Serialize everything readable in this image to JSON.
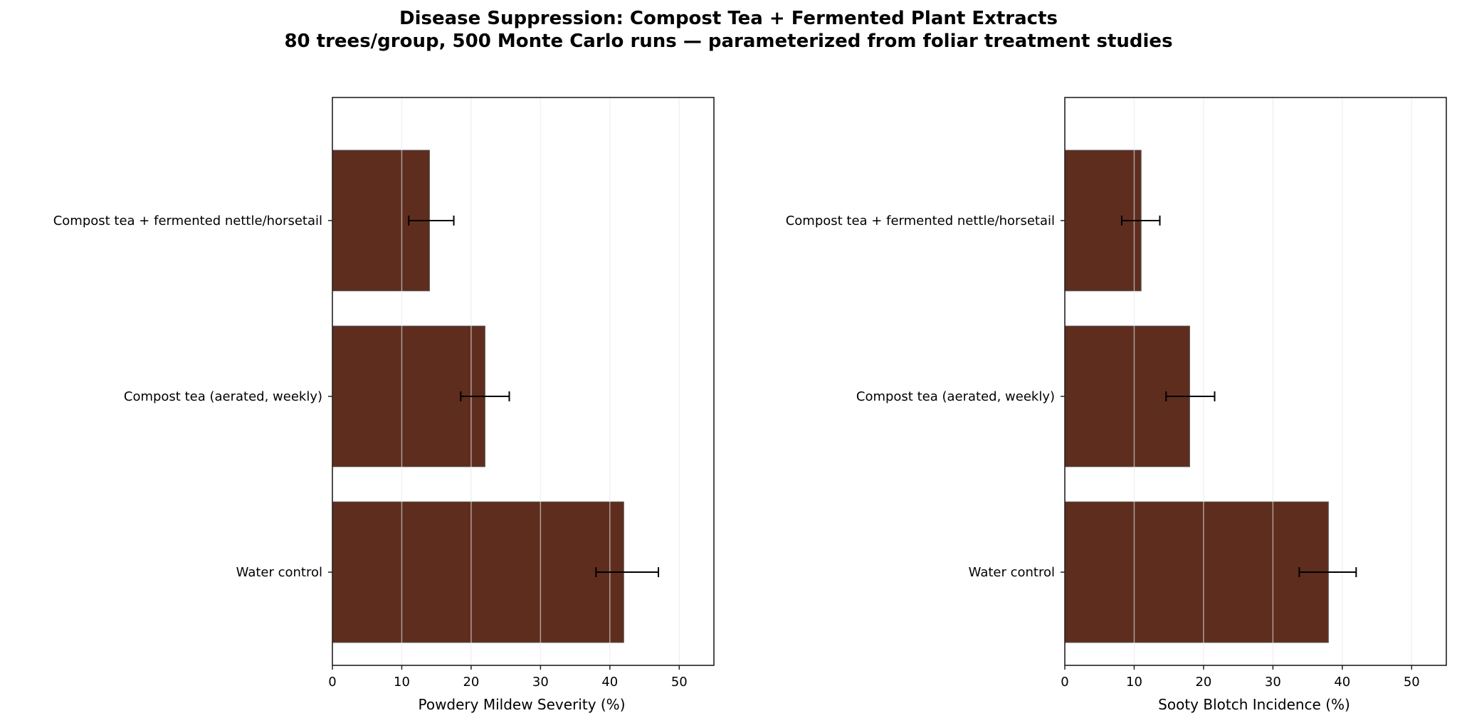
{
  "title": "Disease Suppression: Compost Tea + Fermented Plant Extracts",
  "subtitle": "80 trees/group, 500 Monte Carlo runs — parameterized from foliar treatment studies",
  "colors": {
    "bar": "#5e2d1e",
    "bar_edge": "#555555",
    "grid": "#e8e8e8",
    "axis": "#222222",
    "error": "#000000"
  },
  "chart_data": [
    {
      "type": "bar",
      "orientation": "horizontal",
      "title": "",
      "xlabel": "Powdery Mildew Severity (%)",
      "ylabel": "",
      "xlim": [
        0,
        55
      ],
      "xticks": [
        0,
        10,
        20,
        30,
        40,
        50
      ],
      "grid": "x",
      "categories": [
        "Compost tea + fermented nettle/horsetail",
        "Compost tea (aerated, weekly)",
        "Water control"
      ],
      "values": [
        14,
        22,
        42
      ],
      "error_low": [
        11,
        18.5,
        38
      ],
      "error_high": [
        17.5,
        25.5,
        47
      ]
    },
    {
      "type": "bar",
      "orientation": "horizontal",
      "title": "",
      "xlabel": "Sooty Blotch Incidence (%)",
      "ylabel": "",
      "xlim": [
        0,
        55
      ],
      "xticks": [
        0,
        10,
        20,
        30,
        40,
        50
      ],
      "grid": "x",
      "categories": [
        "Compost tea + fermented nettle/horsetail",
        "Compost tea (aerated, weekly)",
        "Water control"
      ],
      "values": [
        11,
        18,
        38
      ],
      "error_low": [
        8.2,
        14.6,
        33.8
      ],
      "error_high": [
        13.7,
        21.6,
        42
      ]
    }
  ]
}
